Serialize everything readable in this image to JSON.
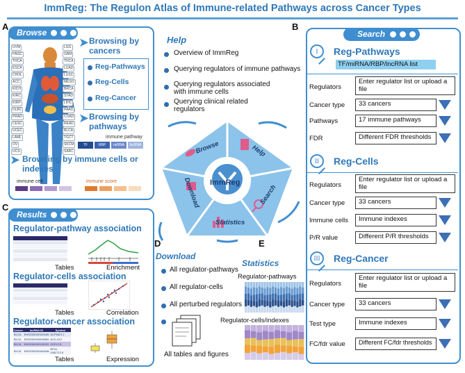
{
  "title": "ImmReg: The Regulon Atlas of Immune-related Pathways across Cancer Types",
  "letters": {
    "a": "A",
    "b": "B",
    "c": "C",
    "d": "D",
    "e": "E"
  },
  "browse": {
    "tab": "Browse",
    "by_cancers": "Browsing by cancers",
    "items": [
      "Reg-Pathways",
      "Reg-Cells",
      "Reg-Cancer"
    ],
    "by_pathways": "Browsing by pathways",
    "immune_pathway": "immune pathway",
    "pathway_chips": [
      "TF",
      "RBP",
      "miRNA",
      "lncRNA"
    ],
    "by_cells": "Browsing by immune cells or indexes",
    "immune_cell": "immune cell",
    "immune_score": "immune score",
    "body_labels_left": [
      "UVM",
      "HNSC",
      "THCA",
      "ESCA",
      "CHOL",
      "ACC",
      "KICH",
      "KIRC",
      "KIRP",
      "DLBC",
      "PRAD",
      "CESC",
      "UCEC",
      "LAML",
      "OV",
      "UCS"
    ],
    "body_labels_right": [
      "LGG",
      "GBM",
      "THCA",
      "LUAD",
      "LUSC",
      "MESO",
      "BRCA",
      "STAD",
      "LIHC",
      "PAAD",
      "COAD",
      "READ",
      "BLCA",
      "TGCT",
      "SKCM",
      "SARC"
    ]
  },
  "help": {
    "title": "Help",
    "items": [
      "Overview of ImmReg",
      "Querying regulators of immune pathways",
      "Querying regulators associated with immune cells",
      "Querying clinical related regulators"
    ]
  },
  "pentagon": {
    "center": "ImmReg",
    "browse": "Browse",
    "help": "Help",
    "search": "Search",
    "statistics": "Statistics",
    "download": "Download"
  },
  "search": {
    "tab": "Search",
    "sections": [
      {
        "num": "I",
        "name": "Reg-Pathways",
        "banner": "TF/miRNA/RBP/lncRNA list",
        "rows": [
          [
            "Regulators",
            "Enter regulator list or upload a file"
          ],
          [
            "Cancer type",
            "33 cancers"
          ],
          [
            "Pathways",
            "17 immune pathways"
          ],
          [
            "FDR",
            "Different FDR thresholds"
          ]
        ]
      },
      {
        "num": "II",
        "name": "Reg-Cells",
        "rows": [
          [
            "Regulators",
            "Enter regulator list or upload a file"
          ],
          [
            "Cancer type",
            "33 cancers"
          ],
          [
            "Immune cells",
            "Immune indexes"
          ],
          [
            "P/R value",
            "Different P/R thresholds"
          ]
        ]
      },
      {
        "num": "III",
        "name": "Reg-Cancer",
        "rows": [
          [
            "Regulators",
            "Enter regulator list or upload a file"
          ],
          [
            "Cancer type",
            "33 cancers"
          ],
          [
            "Test type",
            "Immune indexes"
          ],
          [
            "FC/fdr value",
            "Different FC/fdr thresholds"
          ]
        ]
      }
    ]
  },
  "results": {
    "tab": "Results",
    "h1": "Regulator-pathway association",
    "h2": "Regulator-cells association",
    "h3": "Regulator-cancer association",
    "cap_tables": "Tables",
    "cap_enrichment": "Enrichment",
    "cap_correlation": "Correlation",
    "cap_expression": "Expression",
    "t3_headers": [
      "Cancer",
      "lncRNA ID",
      "Symbol"
    ],
    "t3_rows": [
      [
        "BLCA",
        "ENSG00000153165",
        "ACP6621.1"
      ],
      [
        "BLCA",
        "ENSG00000006669",
        "AC0-43.2"
      ],
      [
        "BLCA",
        "ENSG00000113020",
        "CE2Y2.5"
      ],
      [
        "BLCA",
        "ENSG00000184048",
        "RP11-2062712.5"
      ]
    ]
  },
  "download": {
    "title": "Download",
    "items": [
      "All regulator-pathways",
      "All regulator-cells",
      "All perturbed regulators"
    ],
    "files": "All tables and figures"
  },
  "statistics": {
    "title": "Statistics",
    "reg_pathways": "Regulator-pathways",
    "reg_cells": "Regulator-cells/indexes"
  },
  "colors": {
    "accent": "#3e8ed0",
    "title": "#2f78b7",
    "triangle": "#3b6fb6",
    "pentagon": "#8cc3ea"
  }
}
